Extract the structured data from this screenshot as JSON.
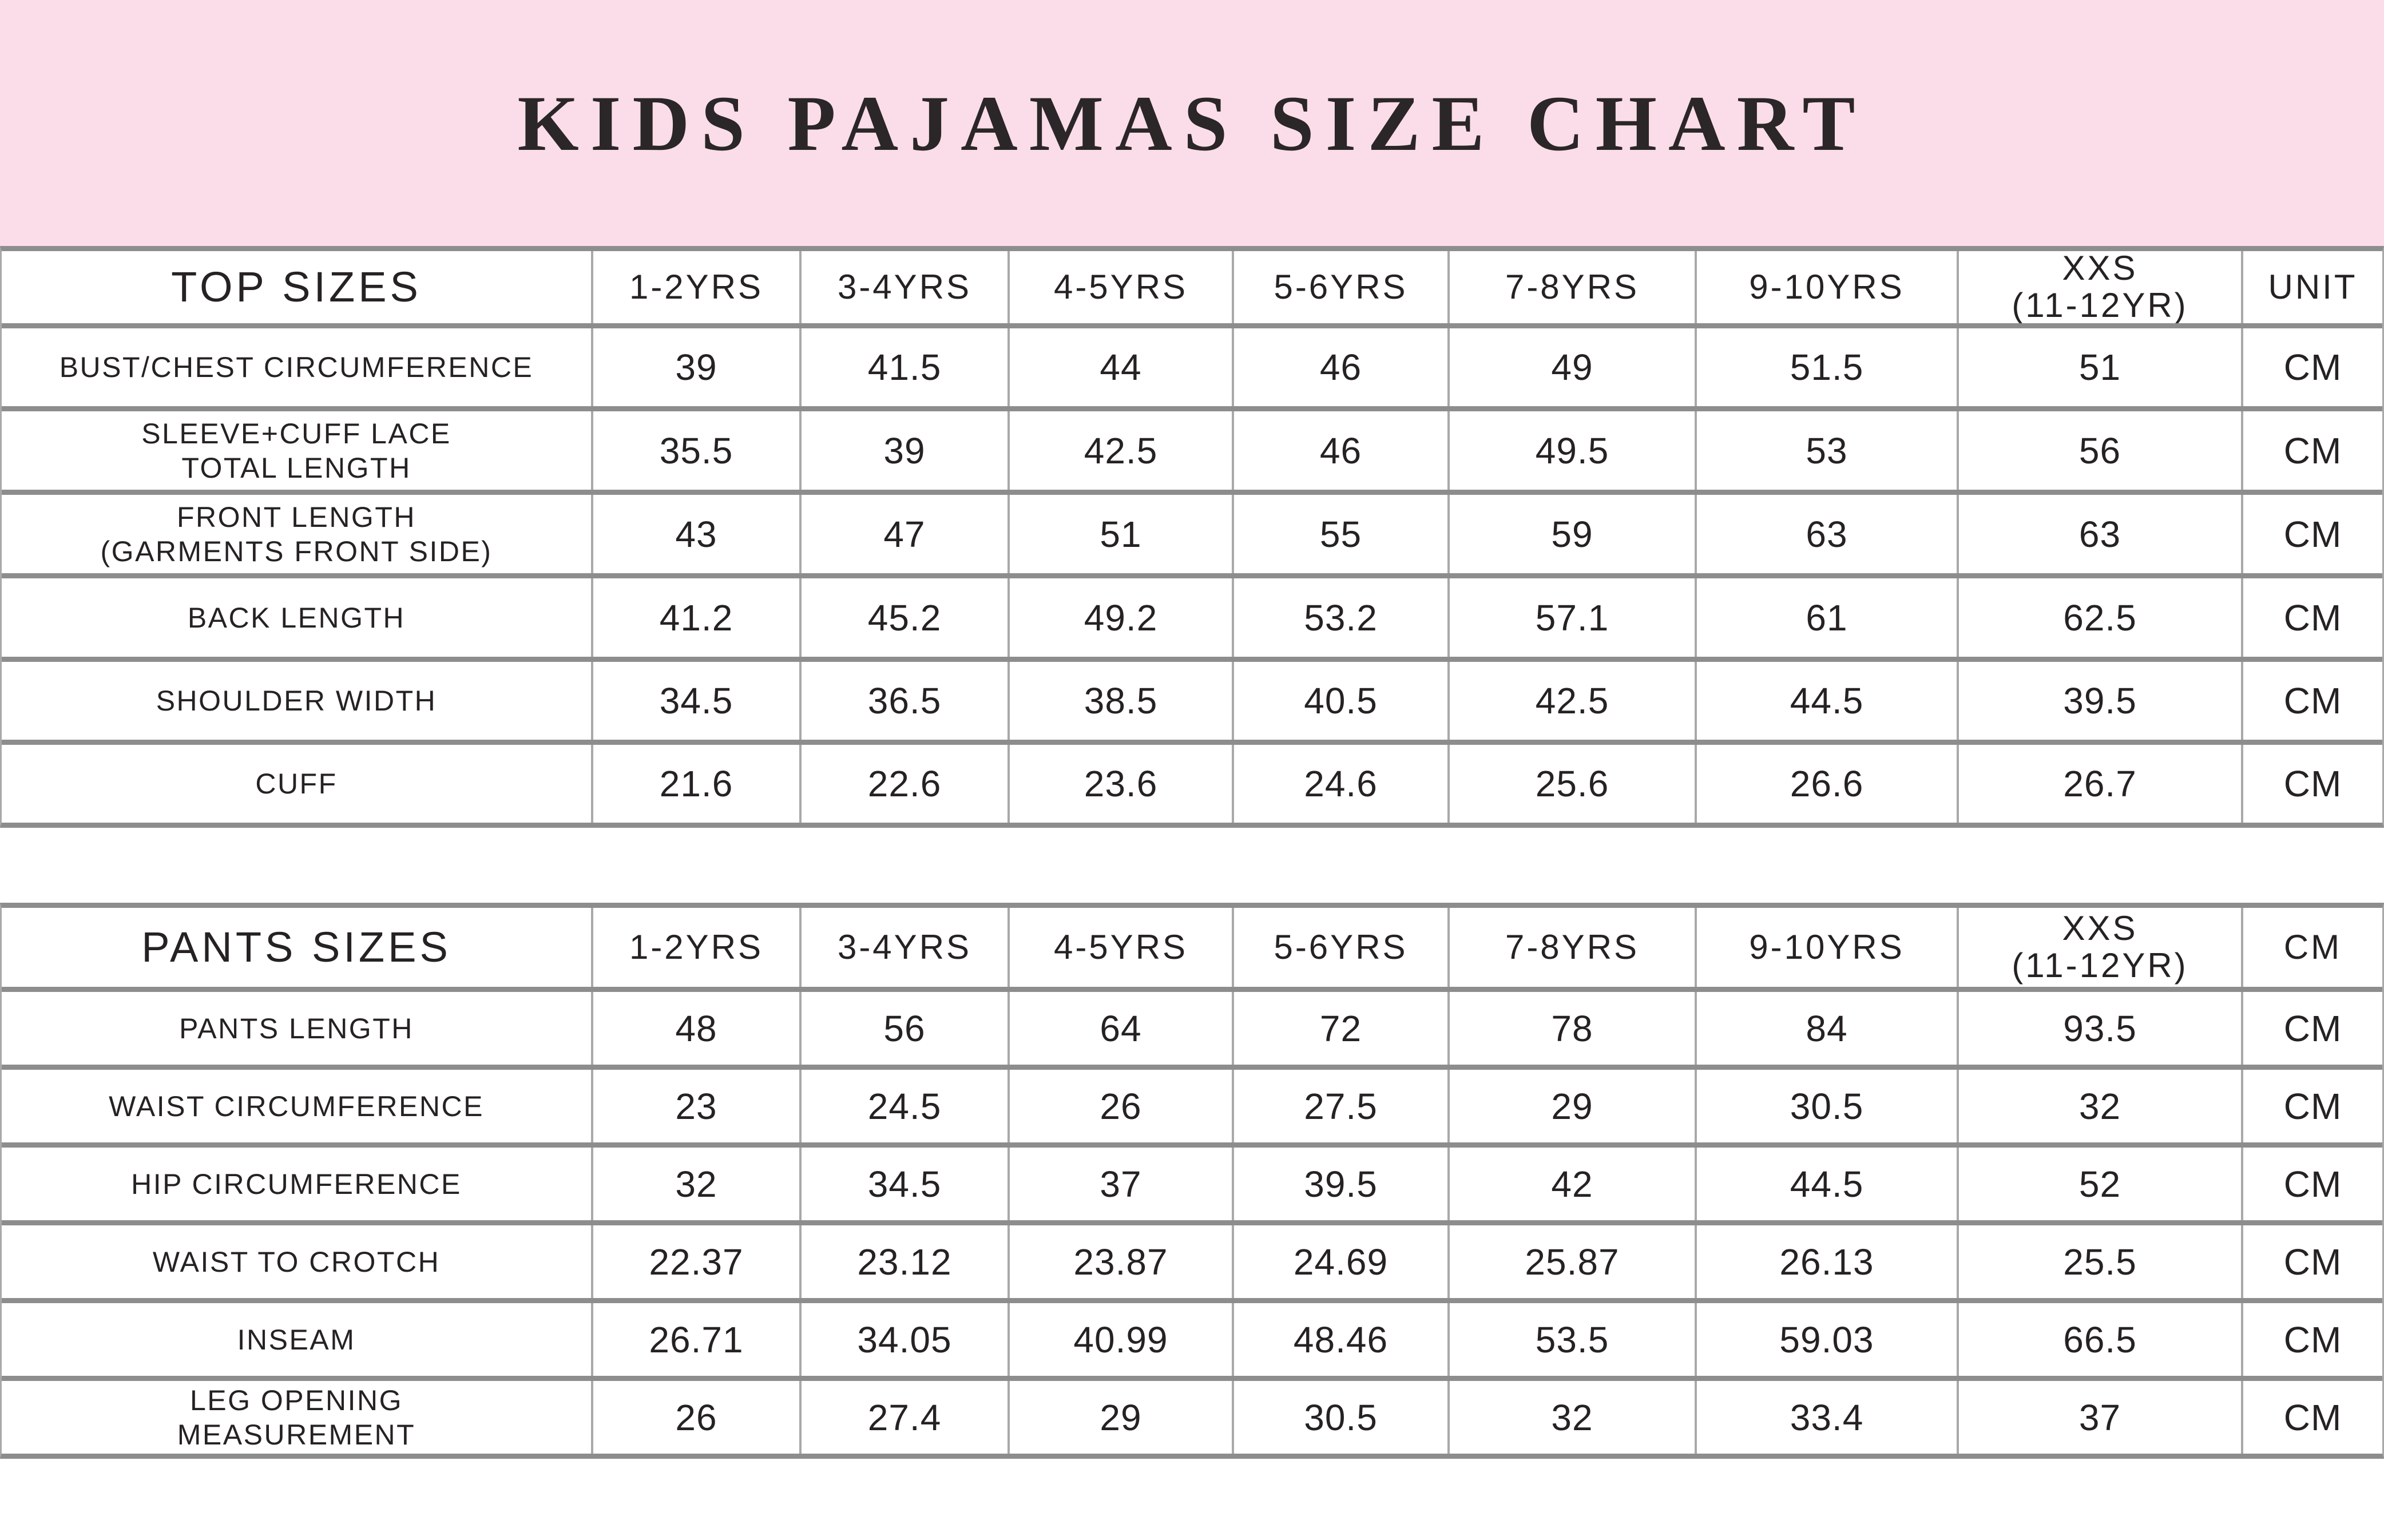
{
  "title": "KIDS PAJAMAS SIZE CHART",
  "colors": {
    "banner_bg": "#fadde8",
    "text": "#262223",
    "horizontal_line": "#8d8d8d",
    "vertical_line": "#a9a9a9",
    "cell_bg": "#ffffff"
  },
  "top_table": {
    "header_label": "TOP SIZES",
    "age_columns": [
      "1-2YRS",
      "3-4YRS",
      "4-5YRS",
      "5-6YRS",
      "7-8YRS",
      "9-10YRS",
      [
        "XXS",
        "(11-12YR)"
      ]
    ],
    "unit_header": "UNIT",
    "rows": [
      {
        "label": "BUST/CHEST CIRCUMFERENCE",
        "values": [
          "39",
          "41.5",
          "44",
          "46",
          "49",
          "51.5",
          "51"
        ],
        "unit": "CM"
      },
      {
        "label": [
          "SLEEVE+CUFF LACE",
          "TOTAL LENGTH"
        ],
        "values": [
          "35.5",
          "39",
          "42.5",
          "46",
          "49.5",
          "53",
          "56"
        ],
        "unit": "CM"
      },
      {
        "label": [
          "FRONT LENGTH",
          "(GARMENTS FRONT SIDE)"
        ],
        "values": [
          "43",
          "47",
          "51",
          "55",
          "59",
          "63",
          "63"
        ],
        "unit": "CM"
      },
      {
        "label": "BACK LENGTH",
        "values": [
          "41.2",
          "45.2",
          "49.2",
          "53.2",
          "57.1",
          "61",
          "62.5"
        ],
        "unit": "CM"
      },
      {
        "label": "SHOULDER WIDTH",
        "values": [
          "34.5",
          "36.5",
          "38.5",
          "40.5",
          "42.5",
          "44.5",
          "39.5"
        ],
        "unit": "CM"
      },
      {
        "label": "CUFF",
        "values": [
          "21.6",
          "22.6",
          "23.6",
          "24.6",
          "25.6",
          "26.6",
          "26.7"
        ],
        "unit": "CM"
      }
    ]
  },
  "pants_table": {
    "header_label": "PANTS SIZES",
    "age_columns": [
      "1-2YRS",
      "3-4YRS",
      "4-5YRS",
      "5-6YRS",
      "7-8YRS",
      "9-10YRS",
      [
        "XXS",
        "(11-12YR)"
      ]
    ],
    "unit_header": "CM",
    "rows": [
      {
        "label": "PANTS LENGTH",
        "values": [
          "48",
          "56",
          "64",
          "72",
          "78",
          "84",
          "93.5"
        ],
        "unit": "CM"
      },
      {
        "label": "WAIST CIRCUMFERENCE",
        "values": [
          "23",
          "24.5",
          "26",
          "27.5",
          "29",
          "30.5",
          "32"
        ],
        "unit": "CM"
      },
      {
        "label": "HIP CIRCUMFERENCE",
        "values": [
          "32",
          "34.5",
          "37",
          "39.5",
          "42",
          "44.5",
          "52"
        ],
        "unit": "CM"
      },
      {
        "label": "WAIST TO CROTCH",
        "values": [
          "22.37",
          "23.12",
          "23.87",
          "24.69",
          "25.87",
          "26.13",
          "25.5"
        ],
        "unit": "CM"
      },
      {
        "label": "INSEAM",
        "values": [
          "26.71",
          "34.05",
          "40.99",
          "48.46",
          "53.5",
          "59.03",
          "66.5"
        ],
        "unit": "CM"
      },
      {
        "label": [
          "LEG OPENING",
          "MEASUREMENT"
        ],
        "values": [
          "26",
          "27.4",
          "29",
          "30.5",
          "32",
          "33.4",
          "37"
        ],
        "unit": "CM"
      }
    ]
  }
}
